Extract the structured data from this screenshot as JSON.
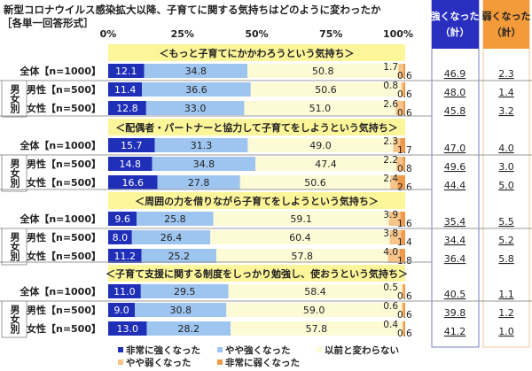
{
  "chart_data": {
    "type": "bar",
    "stacked": true,
    "orientation": "horizontal",
    "title": "新型コロナウイルス感染拡大以降、子育てに関する気持ちはどのように変わったか",
    "subtitle": "［各単一回答形式］",
    "x_ticks": [
      "0%",
      "25%",
      "50%",
      "75%",
      "100%"
    ],
    "xlim": [
      0,
      100
    ],
    "gender_label": "男女別",
    "sum_headers": {
      "strong": "強くなった（計）",
      "weak": "弱くなった（計）"
    },
    "colors": {
      "very_strong": "#1f2fb8",
      "somewhat_strong": "#9ec5f0",
      "unchanged": "#fdfbd6",
      "somewhat_weak": "#f7c48a",
      "very_weak": "#ee9a4a",
      "strong_sum": "#2a2fc0",
      "weak_sum": "#f39a3a",
      "section_band": "#fdf59a"
    },
    "series": [
      {
        "name": "非常に強くなった"
      },
      {
        "name": "やや強くなった"
      },
      {
        "name": "以前と変わらない"
      },
      {
        "name": "やや弱くなった"
      },
      {
        "name": "非常に弱くなった"
      }
    ],
    "groups": [
      {
        "heading": "＜もっと子育てにかかわろうという気持ち＞",
        "rows": [
          {
            "label": "全体【n=1000】",
            "values": [
              12.1,
              34.8,
              50.8,
              1.7,
              0.6
            ],
            "strong": "46.9",
            "weak": "2.3"
          },
          {
            "label": "男性【n=500】",
            "values": [
              11.4,
              36.6,
              50.6,
              0.8,
              0.6
            ],
            "strong": "48.0",
            "weak": "1.4"
          },
          {
            "label": "女性【n=500】",
            "values": [
              12.8,
              33.0,
              51.0,
              2.6,
              0.6
            ],
            "strong": "45.8",
            "weak": "3.2"
          }
        ]
      },
      {
        "heading": "＜配偶者・パートナーと協力して子育てをしようという気持ち＞",
        "rows": [
          {
            "label": "全体【n=1000】",
            "values": [
              15.7,
              31.3,
              49.0,
              2.3,
              1.7
            ],
            "strong": "47.0",
            "weak": "4.0"
          },
          {
            "label": "男性【n=500】",
            "values": [
              14.8,
              34.8,
              47.4,
              2.2,
              0.8
            ],
            "strong": "49.6",
            "weak": "3.0"
          },
          {
            "label": "女性【n=500】",
            "values": [
              16.6,
              27.8,
              50.6,
              2.4,
              2.6
            ],
            "strong": "44.4",
            "weak": "5.0"
          }
        ]
      },
      {
        "heading": "＜周囲の力を借りながら子育てをしようという気持ち＞",
        "rows": [
          {
            "label": "全体【n=1000】",
            "values": [
              9.6,
              25.8,
              59.1,
              3.9,
              1.6
            ],
            "strong": "35.4",
            "weak": "5.5"
          },
          {
            "label": "男性【n=500】",
            "values": [
              8.0,
              26.4,
              60.4,
              3.8,
              1.4
            ],
            "strong": "34.4",
            "weak": "5.2"
          },
          {
            "label": "女性【n=500】",
            "values": [
              11.2,
              25.2,
              57.8,
              4.0,
              1.8
            ],
            "strong": "36.4",
            "weak": "5.8"
          }
        ]
      },
      {
        "heading": "＜子育て支援に関する制度をしっかり勉強し、使おうという気持ち＞",
        "rows": [
          {
            "label": "全体【n=1000】",
            "values": [
              11.0,
              29.5,
              58.4,
              0.5,
              0.6
            ],
            "strong": "40.5",
            "weak": "1.1"
          },
          {
            "label": "男性【n=500】",
            "values": [
              9.0,
              30.8,
              59.0,
              0.6,
              0.6
            ],
            "strong": "39.8",
            "weak": "1.2"
          },
          {
            "label": "女性【n=500】",
            "values": [
              13.0,
              28.2,
              57.8,
              0.4,
              0.6
            ],
            "strong": "41.2",
            "weak": "1.0"
          }
        ]
      }
    ]
  }
}
